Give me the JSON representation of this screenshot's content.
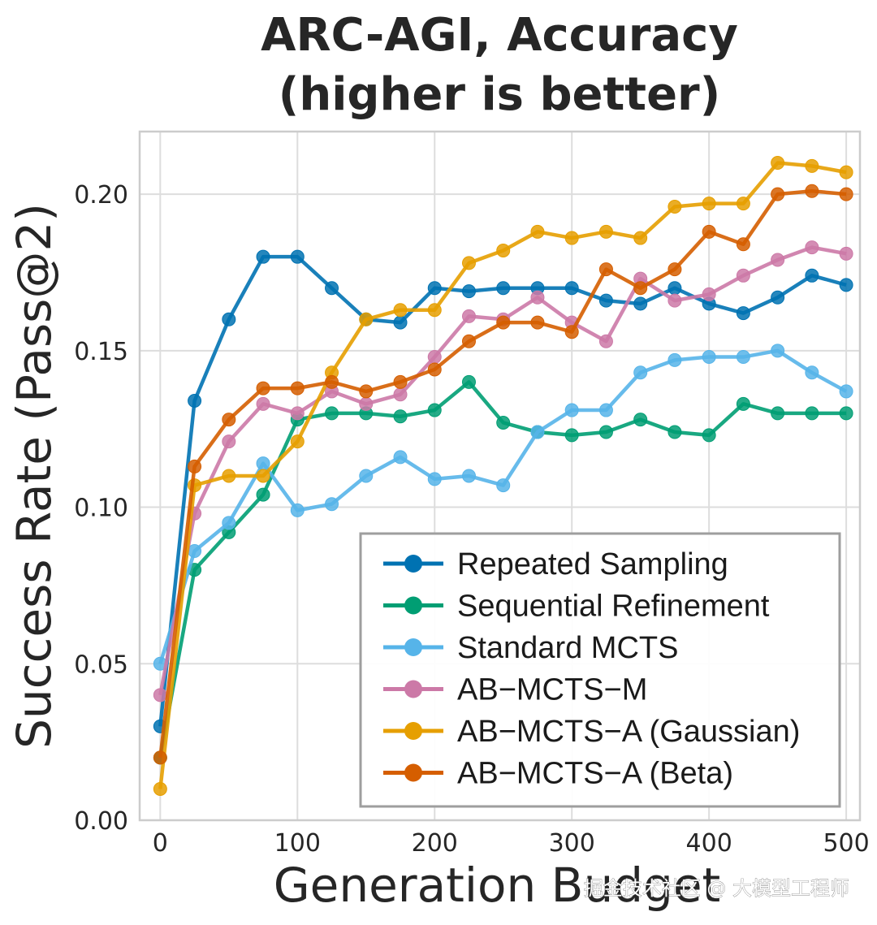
{
  "chart_data": {
    "type": "line",
    "title_line1": "ARC-AGI, Accuracy",
    "title_line2": "(higher is better)",
    "xlabel": "Generation Budget",
    "ylabel": "Success Rate (Pass@2)",
    "xlim": [
      -15,
      510
    ],
    "ylim": [
      0.0,
      0.22
    ],
    "xticks": [
      0,
      100,
      200,
      300,
      400,
      500
    ],
    "yticks": [
      0.0,
      0.05,
      0.1,
      0.15,
      0.2
    ],
    "ytick_labels": [
      "0.00",
      "0.05",
      "0.10",
      "0.15",
      "0.20"
    ],
    "grid": true,
    "legend_position": "lower-right",
    "x": [
      0,
      25,
      50,
      75,
      100,
      125,
      150,
      175,
      200,
      225,
      250,
      275,
      300,
      325,
      350,
      375,
      400,
      425,
      450,
      475,
      500
    ],
    "series": [
      {
        "name": "Repeated Sampling",
        "color": "#0072b2",
        "values": [
          0.03,
          0.134,
          0.16,
          0.18,
          0.18,
          0.17,
          0.16,
          0.159,
          0.17,
          0.169,
          0.17,
          0.17,
          0.17,
          0.166,
          0.165,
          0.17,
          0.165,
          0.162,
          0.167,
          0.174,
          0.171
        ]
      },
      {
        "name": "Sequential Refinement",
        "color": "#009e73",
        "values": [
          0.02,
          0.08,
          0.092,
          0.104,
          0.128,
          0.13,
          0.13,
          0.129,
          0.131,
          0.14,
          0.127,
          0.124,
          0.123,
          0.124,
          0.128,
          0.124,
          0.123,
          0.133,
          0.13,
          0.13,
          0.13
        ]
      },
      {
        "name": "Standard MCTS",
        "color": "#56b4e9",
        "values": [
          0.05,
          0.086,
          0.095,
          0.114,
          0.099,
          0.101,
          0.11,
          0.116,
          0.109,
          0.11,
          0.107,
          0.124,
          0.131,
          0.131,
          0.143,
          0.147,
          0.148,
          0.148,
          0.15,
          0.143,
          0.137
        ]
      },
      {
        "name": "AB−MCTS−M",
        "color": "#cc79a7",
        "values": [
          0.04,
          0.098,
          0.121,
          0.133,
          0.13,
          0.137,
          0.133,
          0.136,
          0.148,
          0.161,
          0.16,
          0.167,
          0.159,
          0.153,
          0.173,
          0.166,
          0.168,
          0.174,
          0.179,
          0.183,
          0.181
        ]
      },
      {
        "name": "AB−MCTS−A (Gaussian)",
        "color": "#e69f00",
        "values": [
          0.01,
          0.107,
          0.11,
          0.11,
          0.121,
          0.143,
          0.16,
          0.163,
          0.163,
          0.178,
          0.182,
          0.188,
          0.186,
          0.188,
          0.186,
          0.196,
          0.197,
          0.197,
          0.21,
          0.209,
          0.207
        ]
      },
      {
        "name": "AB−MCTS−A (Beta)",
        "color": "#d55e00",
        "values": [
          0.02,
          0.113,
          0.128,
          0.138,
          0.138,
          0.14,
          0.137,
          0.14,
          0.144,
          0.153,
          0.159,
          0.159,
          0.156,
          0.176,
          0.17,
          0.176,
          0.188,
          0.184,
          0.2,
          0.201,
          0.2
        ]
      }
    ]
  },
  "watermark": "掘金技术社区 @ 大模型工程师"
}
